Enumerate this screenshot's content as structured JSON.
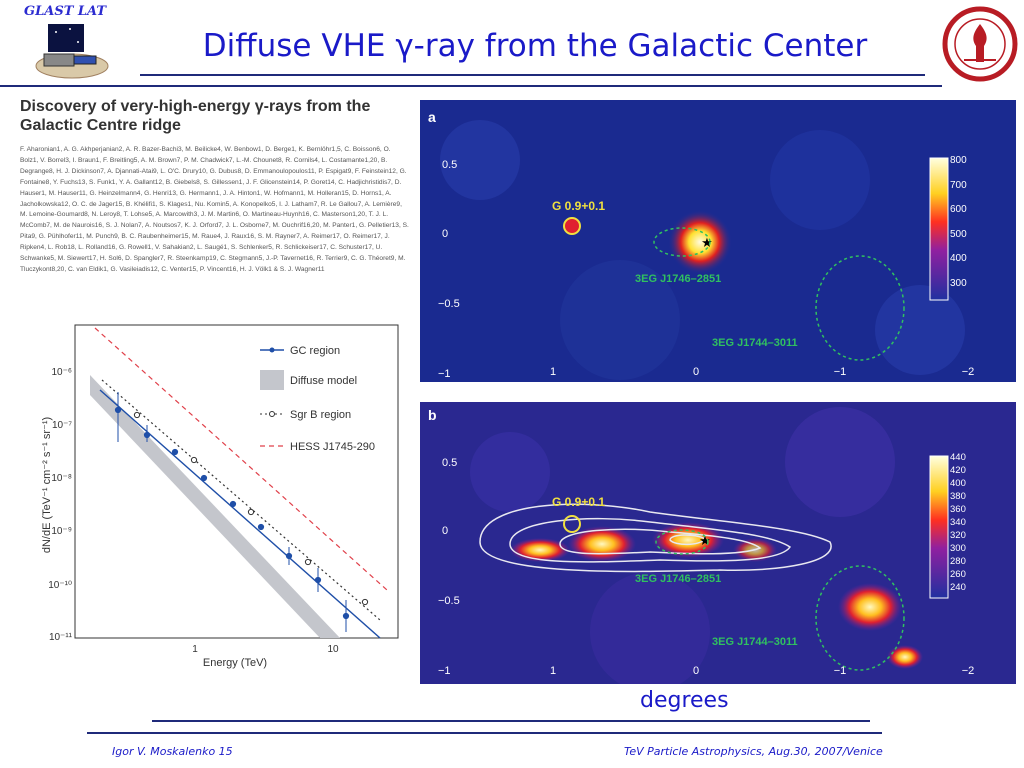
{
  "header": {
    "logo_text": "GLAST LAT",
    "title": "Diffuse VHE γ-ray from the Galactic Center"
  },
  "paper": {
    "title": "Discovery of very-high-energy γ-rays from the Galactic Centre ridge",
    "authors": "F. Aharonian1, A. G. Akhperjanian2, A. R. Bazer-Bachi3, M. Beilicke4, W. Benbow1, D. Berge1, K. Bernlöhr1,5, C. Boisson6, O. Bolz1, V. Borrel3, I. Braun1, F. Breitling5, A. M. Brown7, P. M. Chadwick7, L.-M. Chounet8, R. Cornils4, L. Costamante1,20, B. Degrange8, H. J. Dickinson7, A. Djannati-Atai9, L. O'C. Drury10, G. Dubus8, D. Emmanoulopoulos11, P. Espigat9, F. Feinstein12, G. Fontaine8, Y. Fuchs13, S. Funk1, Y. A. Gallant12, B. Giebels8, S. Gillessen1, J. F. Glicenstein14, P. Goret14, C. Hadjichristidis7, D. Hauser1, M. Hauser11, G. Heinzelmann4, G. Henri13, G. Hermann1, J. A. Hinton1, W. Hofmann1, M. Holleran15, D. Horns1, A. Jacholkowska12, O. C. de Jager15, B. Khélifi1, S. Klages1, Nu. Komin5, A. Konopelko5, I. J. Latham7, R. Le Gallou7, A. Lemière9, M. Lemoine-Goumard8, N. Leroy8, T. Lohse5, A. Marcowith3, J. M. Martin6, O. Martineau-Huynh16, C. Masterson1,20, T. J. L. McComb7, M. de Naurois16, S. J. Nolan7, A. Noutsos7, K. J. Orford7, J. L. Osborne7, M. Ouchrif16,20, M. Panter1, G. Pelletier13, S. Pita9, G. Pühlhofer11, M. Punch9, B. C. Raubenheimer15, M. Raue4, J. Raux16, S. M. Rayner7, A. Reimer17, O. Reimer17, J. Ripken4, L. Rob18, L. Rolland16, G. Rowell1, V. Sahakian2, L. Saugé1, S. Schlenker5, R. Schlickeiser17, C. Schuster17, U. Schwanke5, M. Siewert17, H. Sol6, D. Spangler7, R. Steenkamp19, C. Stegmann5, J.-P. Tavernet16, R. Terrier9, C. G. Théoret9, M. Tluczykont8,20, C. van Eldik1, G. Vasileiadis12, C. Venter15, P. Vincent16, H. J. Völk1 & S. J. Wagner11"
  },
  "spectrum": {
    "legend": {
      "gc": "GC region",
      "diffuse": "Diffuse model",
      "sgrb": "Sgr B region",
      "hess": "HESS J1745-290"
    },
    "ylabel": "dN/dE (TeV⁻¹ cm⁻² s⁻¹ sr⁻¹)",
    "xlabel": "Energy (TeV)",
    "yticks": [
      "10⁻⁶",
      "10⁻⁷",
      "10⁻⁸",
      "10⁻⁹",
      "10⁻¹⁰",
      "10⁻¹¹"
    ],
    "xticks": [
      "1",
      "10"
    ],
    "colors": {
      "gc": "#1f4fa8",
      "diffuse": "#c4c6cc",
      "sgrb": "#333333",
      "hess": "#e0404a"
    }
  },
  "map_a": {
    "panel": "a",
    "sources": {
      "g09": "G 0.9+0.1",
      "egret1": "3EG J1746–2851",
      "egret2": "3EG J1744–3011"
    },
    "yticks": [
      "0.5",
      "0",
      "−0.5",
      "−1"
    ],
    "xticks": [
      "1",
      "0",
      "−1",
      "−2"
    ],
    "colorbar": [
      "800",
      "700",
      "600",
      "500",
      "400",
      "300"
    ]
  },
  "map_b": {
    "panel": "b",
    "sources": {
      "g09": "G 0.9+0.1",
      "egret1": "3EG J1746–2851",
      "egret2": "3EG J1744–3011"
    },
    "yticks": [
      "0.5",
      "0",
      "−0.5",
      "−1"
    ],
    "xticks": [
      "1",
      "0",
      "−1",
      "−2"
    ],
    "colorbar": [
      "440",
      "420",
      "400",
      "380",
      "360",
      "340",
      "320",
      "300",
      "280",
      "260",
      "240"
    ]
  },
  "degrees": "degrees",
  "footer": {
    "left": "Igor V. Moskalenko  15",
    "right": "TeV Particle Astrophysics, Aug.30, 2007/Venice"
  }
}
